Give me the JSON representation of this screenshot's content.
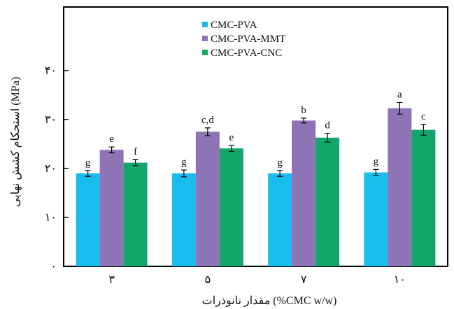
{
  "chart_data": {
    "type": "bar",
    "categories": [
      "۳",
      "۵",
      "۷",
      "۱۰"
    ],
    "series": [
      {
        "name": "CMC-PVA",
        "color": "#1ABCEB",
        "values": [
          19.0,
          19.0,
          19.0,
          19.2
        ],
        "errors": [
          0.6,
          0.7,
          0.6,
          0.6
        ],
        "letters": [
          "g",
          "g",
          "g",
          "g"
        ]
      },
      {
        "name": "CMC-PVA-MMT",
        "color": "#8E74B5",
        "values": [
          23.8,
          27.5,
          29.8,
          32.3
        ],
        "errors": [
          0.6,
          0.8,
          0.5,
          1.2
        ],
        "letters": [
          "e",
          "c,d",
          "b",
          "a"
        ]
      },
      {
        "name": "CMC-PVA-CNC",
        "color": "#12A66A",
        "values": [
          21.2,
          24.1,
          26.3,
          27.9
        ],
        "errors": [
          0.6,
          0.6,
          0.9,
          1.1
        ],
        "letters": [
          "f",
          "e",
          "d",
          "c"
        ]
      }
    ],
    "yticks": [
      {
        "value": 0,
        "label": "۰"
      },
      {
        "value": 10,
        "label": "۱۰"
      },
      {
        "value": 20,
        "label": "۲۰"
      },
      {
        "value": 30,
        "label": "۳۰"
      },
      {
        "value": 40,
        "label": "۴۰"
      }
    ],
    "ylim": [
      0,
      53
    ],
    "xlabel": "مقدار نانوذرات (%CMC w/w)",
    "ylabel": "استحکام کشش نهایی (MPa)",
    "legend_position": "top-center",
    "grid": false
  }
}
